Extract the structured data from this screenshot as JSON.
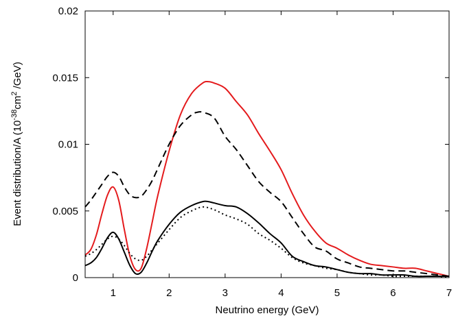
{
  "chart_data": {
    "type": "line",
    "xlabel": "Neutrino energy (GeV)",
    "ylabel": {
      "prefix": "Event distribution/A (10",
      "sup1": "-38",
      "mid": "cm",
      "sup2": "2",
      "suffix": " /GeV)"
    },
    "xlim": [
      0.5,
      7
    ],
    "ylim": [
      0,
      0.02
    ],
    "xticks": [
      1,
      2,
      3,
      4,
      5,
      6,
      7
    ],
    "xtick_labels": [
      "1",
      "2",
      "3",
      "4",
      "5",
      "6",
      "7"
    ],
    "yticks": [
      0,
      0.005,
      0.01,
      0.015,
      0.02
    ],
    "ytick_labels": [
      "0",
      "0.005",
      "0.01",
      "0.015",
      "0.02"
    ],
    "grid": false,
    "series": [
      {
        "color": "#e41a1c",
        "dash": "solid",
        "x": [
          0.5,
          0.6,
          0.7,
          0.8,
          0.9,
          1.0,
          1.1,
          1.2,
          1.3,
          1.4,
          1.5,
          1.6,
          1.7,
          1.8,
          2.0,
          2.2,
          2.4,
          2.6,
          2.7,
          2.8,
          3.0,
          3.2,
          3.4,
          3.6,
          3.8,
          4.0,
          4.2,
          4.4,
          4.6,
          4.8,
          5.0,
          5.2,
          5.4,
          5.6,
          5.8,
          6.0,
          6.2,
          6.4,
          6.6,
          6.8,
          7.0
        ],
        "y": [
          0.0017,
          0.0021,
          0.0032,
          0.0048,
          0.0062,
          0.0068,
          0.0058,
          0.0036,
          0.0016,
          0.0006,
          0.0007,
          0.0022,
          0.0042,
          0.0062,
          0.0095,
          0.0122,
          0.0138,
          0.0146,
          0.0147,
          0.0146,
          0.0142,
          0.0132,
          0.0122,
          0.0108,
          0.0095,
          0.0081,
          0.0063,
          0.0047,
          0.0035,
          0.0026,
          0.0022,
          0.0017,
          0.0013,
          0.001,
          0.0009,
          0.0008,
          0.0007,
          0.0007,
          0.0005,
          0.0003,
          0.0001
        ]
      },
      {
        "color": "#000000",
        "dash": "dashed",
        "x": [
          0.5,
          0.6,
          0.7,
          0.8,
          0.9,
          1.0,
          1.1,
          1.2,
          1.3,
          1.4,
          1.5,
          1.6,
          1.7,
          1.8,
          2.0,
          2.2,
          2.4,
          2.5,
          2.6,
          2.8,
          3.0,
          3.2,
          3.4,
          3.6,
          3.8,
          4.0,
          4.2,
          4.4,
          4.6,
          4.8,
          5.0,
          5.2,
          5.4,
          5.6,
          5.8,
          6.0,
          6.2,
          6.4,
          6.6,
          6.8,
          7.0
        ],
        "y": [
          0.0053,
          0.0058,
          0.0064,
          0.007,
          0.0076,
          0.0079,
          0.0076,
          0.0068,
          0.0062,
          0.006,
          0.0061,
          0.0066,
          0.0073,
          0.0082,
          0.01,
          0.0114,
          0.0122,
          0.0124,
          0.0124,
          0.012,
          0.0106,
          0.0096,
          0.0084,
          0.0072,
          0.0064,
          0.0057,
          0.0045,
          0.0033,
          0.0023,
          0.002,
          0.0014,
          0.0011,
          0.0008,
          0.0007,
          0.0006,
          0.0005,
          0.0005,
          0.0004,
          0.0003,
          0.0002,
          0.0001
        ]
      },
      {
        "color": "#000000",
        "dash": "solid",
        "x": [
          0.5,
          0.6,
          0.7,
          0.8,
          0.9,
          1.0,
          1.1,
          1.2,
          1.3,
          1.4,
          1.5,
          1.6,
          1.7,
          1.8,
          2.0,
          2.2,
          2.4,
          2.6,
          2.7,
          2.8,
          3.0,
          3.2,
          3.4,
          3.6,
          3.8,
          4.0,
          4.2,
          4.4,
          4.6,
          4.8,
          5.0,
          5.2,
          5.4,
          5.6,
          5.8,
          6.0,
          6.2,
          6.4,
          6.6,
          6.8,
          7.0
        ],
        "y": [
          0.0009,
          0.0011,
          0.0015,
          0.0022,
          0.003,
          0.0034,
          0.0029,
          0.0019,
          0.0009,
          0.0003,
          0.0004,
          0.0011,
          0.002,
          0.0028,
          0.004,
          0.0049,
          0.0054,
          0.0057,
          0.0057,
          0.0056,
          0.0054,
          0.0053,
          0.0048,
          0.0041,
          0.0033,
          0.0026,
          0.0016,
          0.0012,
          0.0009,
          0.0008,
          0.0006,
          0.0004,
          0.0003,
          0.0003,
          0.0002,
          0.0002,
          0.0002,
          0.0001,
          0.0001,
          0.0001,
          0.0001
        ]
      },
      {
        "color": "#000000",
        "dash": "dotted",
        "x": [
          0.5,
          0.6,
          0.7,
          0.8,
          0.9,
          1.0,
          1.1,
          1.2,
          1.3,
          1.4,
          1.5,
          1.6,
          1.7,
          1.8,
          2.0,
          2.2,
          2.4,
          2.6,
          2.8,
          3.0,
          3.2,
          3.4,
          3.6,
          3.8,
          4.0,
          4.2,
          4.4,
          4.6,
          4.8,
          5.0,
          5.2,
          5.4,
          5.6,
          5.8,
          6.0,
          6.2,
          6.4,
          6.6,
          6.8,
          7.0
        ],
        "y": [
          0.0016,
          0.0018,
          0.0021,
          0.0025,
          0.0029,
          0.0031,
          0.0029,
          0.0024,
          0.0018,
          0.0014,
          0.0013,
          0.0016,
          0.0021,
          0.0026,
          0.0036,
          0.0045,
          0.005,
          0.0053,
          0.0051,
          0.0047,
          0.0044,
          0.004,
          0.0033,
          0.0028,
          0.0022,
          0.0015,
          0.0011,
          0.0009,
          0.0007,
          0.0006,
          0.0004,
          0.0003,
          0.0002,
          0.0002,
          0.0001,
          0.0001,
          0.0001,
          0.0001,
          0.0001,
          0.0
        ]
      }
    ]
  }
}
